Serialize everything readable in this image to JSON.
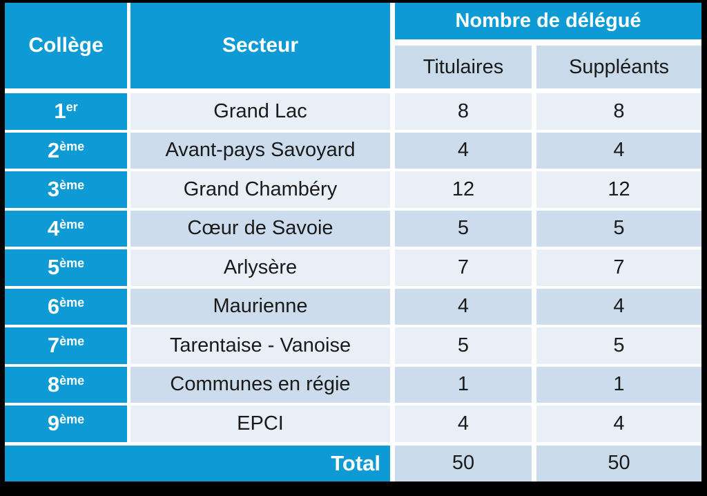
{
  "table": {
    "headers": {
      "college": "Collège",
      "secteur": "Secteur",
      "nombre_de_delegue": "Nombre de délégué",
      "titulaires": "Titulaires",
      "suppleants": "Suppléants"
    },
    "rows": [
      {
        "college_num": "1",
        "college_sup": "er",
        "secteur": "Grand Lac",
        "titulaires": "8",
        "suppleants": "8"
      },
      {
        "college_num": "2",
        "college_sup": "ème",
        "secteur": "Avant-pays Savoyard",
        "titulaires": "4",
        "suppleants": "4"
      },
      {
        "college_num": "3",
        "college_sup": "ème",
        "secteur": "Grand Chambéry",
        "titulaires": "12",
        "suppleants": "12"
      },
      {
        "college_num": "4",
        "college_sup": "ème",
        "secteur": "Cœur de Savoie",
        "titulaires": "5",
        "suppleants": "5"
      },
      {
        "college_num": "5",
        "college_sup": "ème",
        "secteur": "Arlysère",
        "titulaires": "7",
        "suppleants": "7"
      },
      {
        "college_num": "6",
        "college_sup": "ème",
        "secteur": "Maurienne",
        "titulaires": "4",
        "suppleants": "4"
      },
      {
        "college_num": "7",
        "college_sup": "ème",
        "secteur": "Tarentaise - Vanoise",
        "titulaires": "5",
        "suppleants": "5"
      },
      {
        "college_num": "8",
        "college_sup": "ème",
        "secteur": "Communes en régie",
        "titulaires": "1",
        "suppleants": "1"
      },
      {
        "college_num": "9",
        "college_sup": "ème",
        "secteur": "EPCI",
        "titulaires": "4",
        "suppleants": "4"
      }
    ],
    "total": {
      "label": "Total",
      "titulaires": "50",
      "suppleants": "50"
    },
    "colors": {
      "accent_blue": "#0E9BD5",
      "row_light": "#E9EFF7",
      "row_dark": "#CCDCEC",
      "header_light": "#C9DBEB",
      "text_dark": "#1A1A1A"
    }
  }
}
